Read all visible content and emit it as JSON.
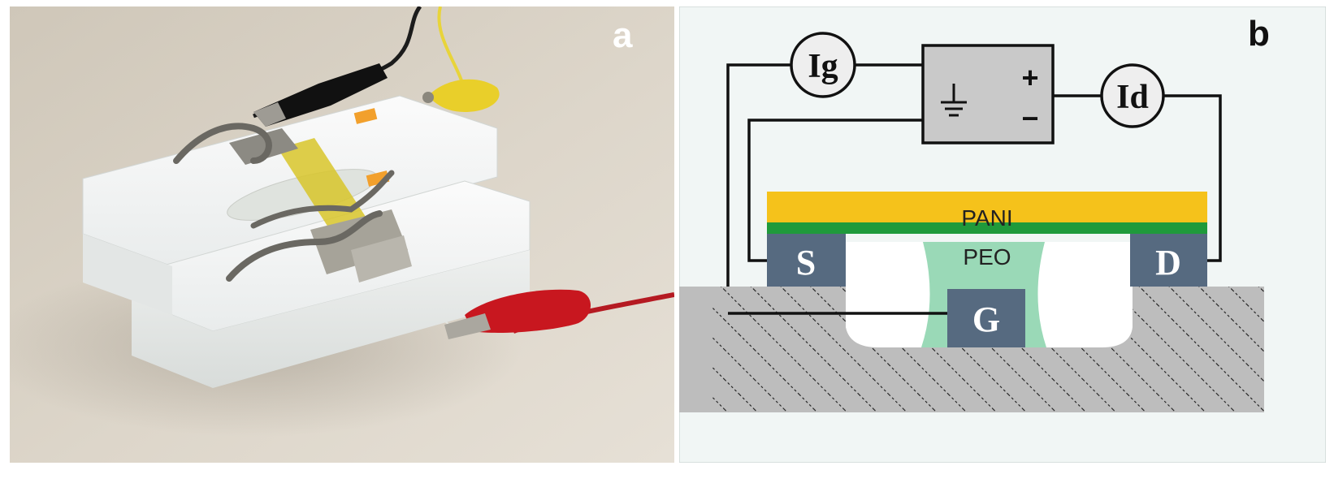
{
  "panel_a": {
    "letter": "a"
  },
  "panel_b": {
    "letter": "b",
    "meters": {
      "gate_current": "Ig",
      "drain_current": "Id"
    },
    "source_polarity": {
      "positive": "+",
      "negative": "−"
    },
    "layers": {
      "top": "PANI",
      "electrolyte": "PEO"
    },
    "electrodes": {
      "source": "S",
      "drain": "D",
      "gate": "G"
    },
    "colors": {
      "pani": "#f5c21b",
      "green_layer": "#1f9a3b",
      "peo": "#9ad9b7",
      "electrode": "#566a80",
      "substrate": "#bdbdbd",
      "battery": "#c9c9c9",
      "background": "#f1f6f5"
    }
  }
}
